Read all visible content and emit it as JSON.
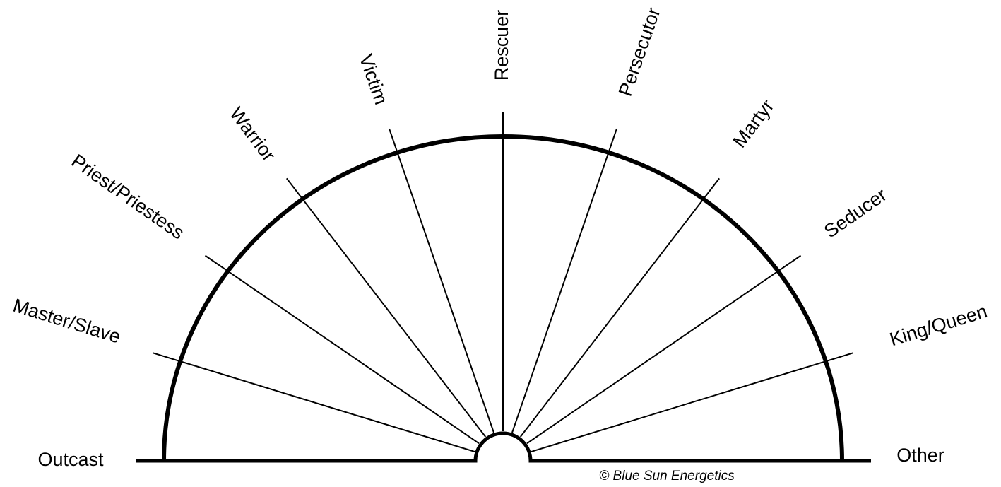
{
  "left_label": "Outcast",
  "right_label": "Other",
  "spokes": [
    "Master/Slave",
    "Priest/Priestess",
    "Warrior",
    "Victim",
    "Rescuer",
    "Persecutor",
    "Martyr",
    "Seducer",
    "King/Queen"
  ],
  "copyright": "© Blue Sun Energetics"
}
